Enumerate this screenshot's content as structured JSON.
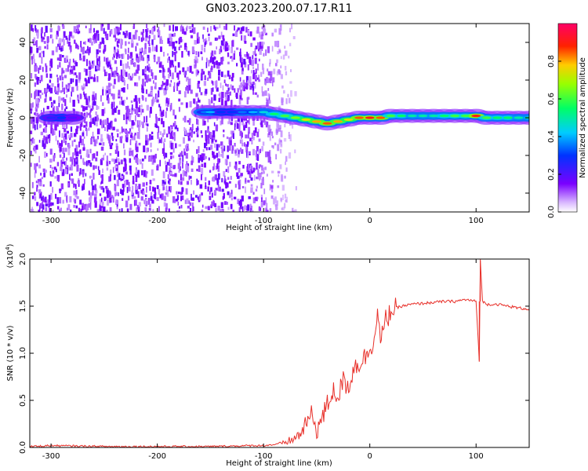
{
  "page_title": "GN03.2023.200.07.17.R11",
  "chart_data": [
    {
      "type": "heatmap",
      "title": "GN03.2023.200.07.17.R11",
      "xlabel": "Height of straight line (km)",
      "ylabel": "Frequency (Hz)",
      "xlim": [
        -320,
        150
      ],
      "ylim": [
        -50,
        50
      ],
      "xticks": [
        -300,
        -200,
        -100,
        0,
        100
      ],
      "xtick_labels": [
        "-300",
        "-200",
        "-100",
        "0",
        "100"
      ],
      "yticks": [
        -40,
        -20,
        0,
        20,
        40
      ],
      "ytick_labels": [
        "-40",
        "-20",
        "0",
        "20",
        "40"
      ],
      "colorbar": {
        "label": "Normalized spectral amplitude",
        "range": [
          0,
          1
        ],
        "ticks": [
          0.0,
          0.2,
          0.4,
          0.6,
          0.8
        ],
        "tick_labels": [
          "0.0",
          "0.2",
          "0.4",
          "0.6",
          "0.8"
        ],
        "colormap": "rainbow (white-violet-blue-cyan-green-yellow-red-magenta)"
      },
      "noise_region_x": [
        -320,
        -70
      ],
      "signal_trace": {
        "x": [
          -300,
          -290,
          -280,
          -155,
          -150,
          -140,
          -130,
          -120,
          -110,
          -100,
          -90,
          -80,
          -70,
          -60,
          -50,
          -40,
          -30,
          -20,
          -10,
          0,
          10,
          20,
          30,
          40,
          50,
          60,
          70,
          80,
          90,
          100,
          110,
          120,
          130,
          140,
          150
        ],
        "freq": [
          0,
          0,
          0,
          3,
          3,
          3,
          3,
          3,
          3,
          3,
          2,
          1,
          0,
          -1,
          -2,
          -3,
          -2,
          -1,
          0,
          0,
          0,
          1,
          1,
          1,
          1,
          1,
          1,
          1,
          1,
          1,
          0,
          0,
          0,
          0,
          0
        ],
        "amplitude": [
          0.25,
          0.3,
          0.2,
          0.35,
          0.4,
          0.3,
          0.3,
          0.35,
          0.4,
          0.45,
          0.55,
          0.6,
          0.65,
          0.75,
          0.8,
          0.85,
          0.8,
          0.75,
          0.85,
          0.9,
          0.85,
          0.6,
          0.55,
          0.5,
          0.5,
          0.5,
          0.55,
          0.6,
          0.6,
          0.9,
          0.6,
          0.55,
          0.55,
          0.5,
          0.5
        ]
      }
    },
    {
      "type": "line",
      "xlabel": "Height of straight line (km)",
      "ylabel": "SNR (10 * v/v)",
      "y_multiplier_label": "(x10^4)",
      "xlim": [
        -320,
        150
      ],
      "ylim": [
        0,
        2.0
      ],
      "xticks": [
        -300,
        -200,
        -100,
        0,
        100
      ],
      "xtick_labels": [
        "-300",
        "-200",
        "-100",
        "0",
        "100"
      ],
      "yticks": [
        0.0,
        0.5,
        1.0,
        1.5,
        2.0
      ],
      "ytick_labels": [
        "0.0",
        "0.5",
        "1.0",
        "1.5",
        "2.0"
      ],
      "series": [
        {
          "color": "#e8302a",
          "x": [
            -320,
            -300,
            -250,
            -200,
            -150,
            -110,
            -100,
            -90,
            -80,
            -70,
            -65,
            -60,
            -55,
            -50,
            -45,
            -40,
            -35,
            -30,
            -25,
            -20,
            -15,
            -10,
            -5,
            0,
            5,
            8,
            10,
            15,
            20,
            25,
            30,
            40,
            50,
            60,
            70,
            80,
            90,
            100,
            103,
            104,
            106,
            110,
            120,
            130,
            140,
            150
          ],
          "y": [
            0.01,
            0.02,
            0.01,
            0.01,
            0.01,
            0.02,
            0.02,
            0.03,
            0.05,
            0.1,
            0.15,
            0.25,
            0.35,
            0.2,
            0.3,
            0.45,
            0.6,
            0.55,
            0.7,
            0.65,
            0.85,
            0.9,
            0.95,
            1.05,
            1.2,
            1.45,
            1.1,
            1.35,
            1.45,
            1.48,
            1.5,
            1.52,
            1.53,
            1.54,
            1.55,
            1.55,
            1.57,
            1.55,
            0.92,
            2.0,
            1.55,
            1.52,
            1.52,
            1.5,
            1.48,
            1.47
          ]
        }
      ],
      "grid": false,
      "legend": "none"
    }
  ]
}
